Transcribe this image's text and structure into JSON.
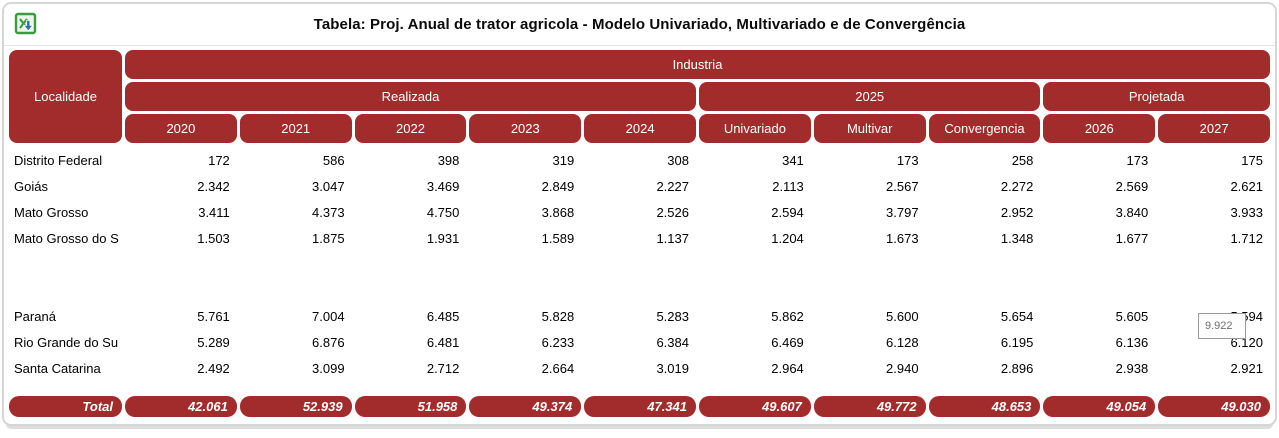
{
  "window": {
    "title": "Tabela: Proj. Anual de trator agricola - Modelo Univariado, Multivariado e de Convergência"
  },
  "colors": {
    "accent": "#A22C2C",
    "header_text": "#FFFFFF",
    "panel_border": "#D6D6D6",
    "body_text": "#000000",
    "tooltip_border": "#9B9B9B",
    "tooltip_text": "#6F6F6F",
    "export_icon_green": "#3E9A41",
    "export_icon_blue": "#2D6FAF"
  },
  "toolbar": {
    "export_icon": "excel-export-icon"
  },
  "table": {
    "corner_header": "Localidade",
    "group_header": "Industria",
    "subgroups": [
      {
        "label": "Realizada",
        "span": 5
      },
      {
        "label": "2025",
        "span": 3
      },
      {
        "label": "Projetada",
        "span": 2
      }
    ],
    "columns": [
      "2020",
      "2021",
      "2022",
      "2023",
      "2024",
      "Univariado",
      "Multivar",
      "Convergencia",
      "2026",
      "2027"
    ],
    "rows": [
      {
        "label": "Distrito Federal",
        "values": [
          "172",
          "586",
          "398",
          "319",
          "308",
          "341",
          "173",
          "258",
          "173",
          "175"
        ]
      },
      {
        "label": "Goiás",
        "values": [
          "2.342",
          "3.047",
          "3.469",
          "2.849",
          "2.227",
          "2.113",
          "2.567",
          "2.272",
          "2.569",
          "2.621"
        ]
      },
      {
        "label": "Mato Grosso",
        "values": [
          "3.411",
          "4.373",
          "4.750",
          "3.868",
          "2.526",
          "2.594",
          "3.797",
          "2.952",
          "3.840",
          "3.933"
        ]
      },
      {
        "label": "Mato Grosso do S",
        "values": [
          "1.503",
          "1.875",
          "1.931",
          "1.589",
          "1.137",
          "1.204",
          "1.673",
          "1.348",
          "1.677",
          "1.712"
        ]
      },
      {
        "label": "",
        "values": [
          "",
          "",
          "",
          "",
          "",
          "",
          "",
          "",
          "",
          ""
        ]
      },
      {
        "label": "",
        "values": [
          "",
          "",
          "",
          "",
          "",
          "",
          "",
          "",
          "",
          ""
        ]
      },
      {
        "label": "Paraná",
        "values": [
          "5.761",
          "7.004",
          "6.485",
          "5.828",
          "5.283",
          "5.862",
          "5.600",
          "5.654",
          "5.605",
          "5.594"
        ]
      },
      {
        "label": "Rio Grande do Su",
        "values": [
          "5.289",
          "6.876",
          "6.481",
          "6.233",
          "6.384",
          "6.469",
          "6.128",
          "6.195",
          "6.136",
          "6.120"
        ]
      },
      {
        "label": "Santa Catarina",
        "values": [
          "2.492",
          "3.099",
          "2.712",
          "2.664",
          "3.019",
          "2.964",
          "2.940",
          "2.896",
          "2.938",
          "2.921"
        ]
      }
    ],
    "total_row": {
      "label": "Total",
      "values": [
        "42.061",
        "52.939",
        "51.958",
        "49.374",
        "47.341",
        "49.607",
        "49.772",
        "48.653",
        "49.054",
        "49.030"
      ]
    }
  },
  "tooltip": {
    "text": "9.922"
  }
}
